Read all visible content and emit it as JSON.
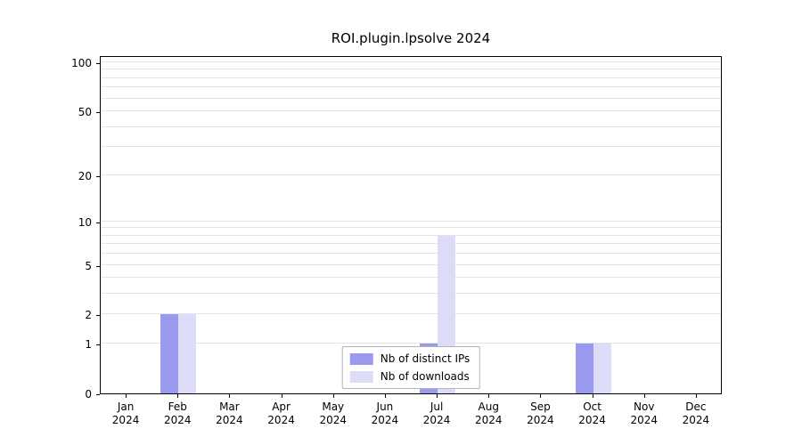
{
  "chart_data": {
    "type": "bar",
    "title": "ROI.plugin.lpsolve 2024",
    "year_label": "2024",
    "categories": [
      "Jan",
      "Feb",
      "Mar",
      "Apr",
      "May",
      "Jun",
      "Jul",
      "Aug",
      "Sep",
      "Oct",
      "Nov",
      "Dec"
    ],
    "series": [
      {
        "name": "Nb of distinct IPs",
        "color": "#9999ee",
        "values": [
          0,
          2,
          0,
          0,
          0,
          0,
          1,
          0,
          0,
          1,
          0,
          0
        ]
      },
      {
        "name": "Nb of downloads",
        "color": "#dcdcf8",
        "values": [
          0,
          2,
          0,
          0,
          0,
          0,
          8,
          0,
          0,
          1,
          0,
          0
        ]
      }
    ],
    "y_ticks": [
      0,
      1,
      2,
      5,
      10,
      20,
      50,
      100
    ],
    "gridlines": [
      1,
      2,
      3,
      4,
      5,
      6,
      7,
      8,
      9,
      10,
      20,
      30,
      40,
      50,
      60,
      70,
      80,
      90,
      100
    ],
    "scale": "log1p",
    "ylim": [
      0,
      110
    ],
    "grid_color": "#e4e4e4",
    "axis_color": "#000000",
    "legend_position": "bottom-center"
  }
}
